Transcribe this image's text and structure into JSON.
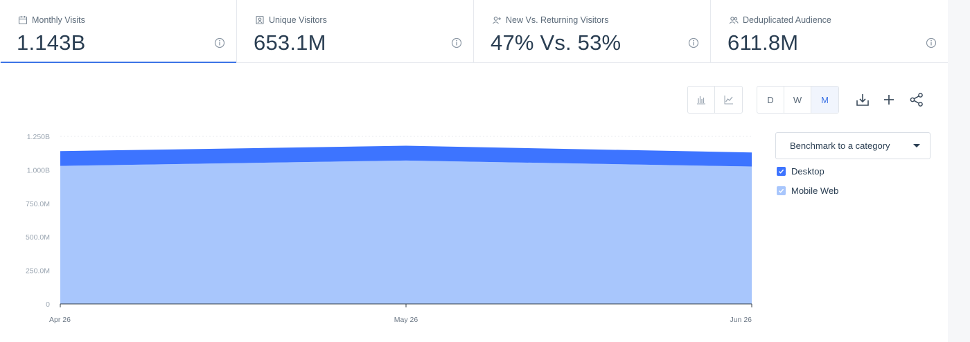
{
  "tabs": [
    {
      "label": "Monthly Visits",
      "value": "1.143B",
      "icon": "calendar-icon",
      "active": true
    },
    {
      "label": "Unique Visitors",
      "value": "653.1M",
      "icon": "person-card-icon",
      "active": false
    },
    {
      "label": "New Vs. Returning Visitors",
      "value": "47% Vs. 53%",
      "icon": "person-add-icon",
      "active": false
    },
    {
      "label": "Deduplicated Audience",
      "value": "611.8M",
      "icon": "people-icon",
      "active": false
    }
  ],
  "toolbar": {
    "chart_types": [
      {
        "icon": "bar-chart-icon",
        "selected": false
      },
      {
        "icon": "line-chart-icon",
        "selected": false
      }
    ],
    "granularity": [
      {
        "label": "D",
        "selected": false
      },
      {
        "label": "W",
        "selected": false
      },
      {
        "label": "M",
        "selected": true
      }
    ],
    "actions": [
      "download-icon",
      "plus-icon",
      "share-icon"
    ]
  },
  "benchmark": {
    "label": "Benchmark to a category"
  },
  "legend": [
    {
      "label": "Desktop",
      "color": "#3d74ff",
      "checked": true
    },
    {
      "label": "Mobile Web",
      "color": "#a8c6fc",
      "checked": true
    }
  ],
  "chart_data": {
    "type": "area",
    "stacked": true,
    "categories": [
      "Apr 26",
      "May 26",
      "Jun 26"
    ],
    "series": [
      {
        "name": "Mobile Web",
        "color": "#a8c6fc",
        "values": [
          1030000000,
          1070000000,
          1025000000
        ]
      },
      {
        "name": "Desktop",
        "color": "#3d74ff",
        "values": [
          110000000,
          110000000,
          105000000
        ]
      }
    ],
    "ylim": [
      0,
      1250000000
    ],
    "y_ticks": [
      {
        "value": 0,
        "label": "0"
      },
      {
        "value": 250000000,
        "label": "250.0M"
      },
      {
        "value": 500000000,
        "label": "500.0M"
      },
      {
        "value": 750000000,
        "label": "750.0M"
      },
      {
        "value": 1000000000,
        "label": "1.000B"
      },
      {
        "value": 1250000000,
        "label": "1.250B"
      }
    ],
    "grid": true,
    "legend_position": "right"
  }
}
